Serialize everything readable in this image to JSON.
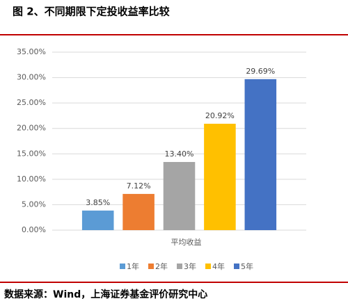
{
  "chart_data": {
    "type": "bar",
    "title": "图 2、不同期限下定投收益率比较",
    "categories": [
      "平均收益"
    ],
    "series": [
      {
        "name": "1年",
        "color": "#5b9bd5",
        "values": [
          3.85
        ],
        "value_labels": [
          "3.85%"
        ]
      },
      {
        "name": "2年",
        "color": "#ed7d31",
        "values": [
          7.12
        ],
        "value_labels": [
          "7.12%"
        ]
      },
      {
        "name": "3年",
        "color": "#a5a5a5",
        "values": [
          13.4
        ],
        "value_labels": [
          "13.40%"
        ]
      },
      {
        "name": "4年",
        "color": "#ffc000",
        "values": [
          20.92
        ],
        "value_labels": [
          "20.92%"
        ]
      },
      {
        "name": "5年",
        "color": "#4472c4",
        "values": [
          29.69
        ],
        "value_labels": [
          "29.69%"
        ]
      }
    ],
    "ylim": [
      0,
      35
    ],
    "yticks": [
      {
        "value": 0,
        "label": "0.00%"
      },
      {
        "value": 5,
        "label": "5.00%"
      },
      {
        "value": 10,
        "label": "10.00%"
      },
      {
        "value": 15,
        "label": "15.00%"
      },
      {
        "value": 20,
        "label": "20.00%"
      },
      {
        "value": 25,
        "label": "25.00%"
      },
      {
        "value": 30,
        "label": "30.00%"
      },
      {
        "value": 35,
        "label": "35.00%"
      }
    ],
    "grid": true,
    "legend": "bottom",
    "source": "数据来源：Wind，上海证券基金评价研究中心"
  }
}
